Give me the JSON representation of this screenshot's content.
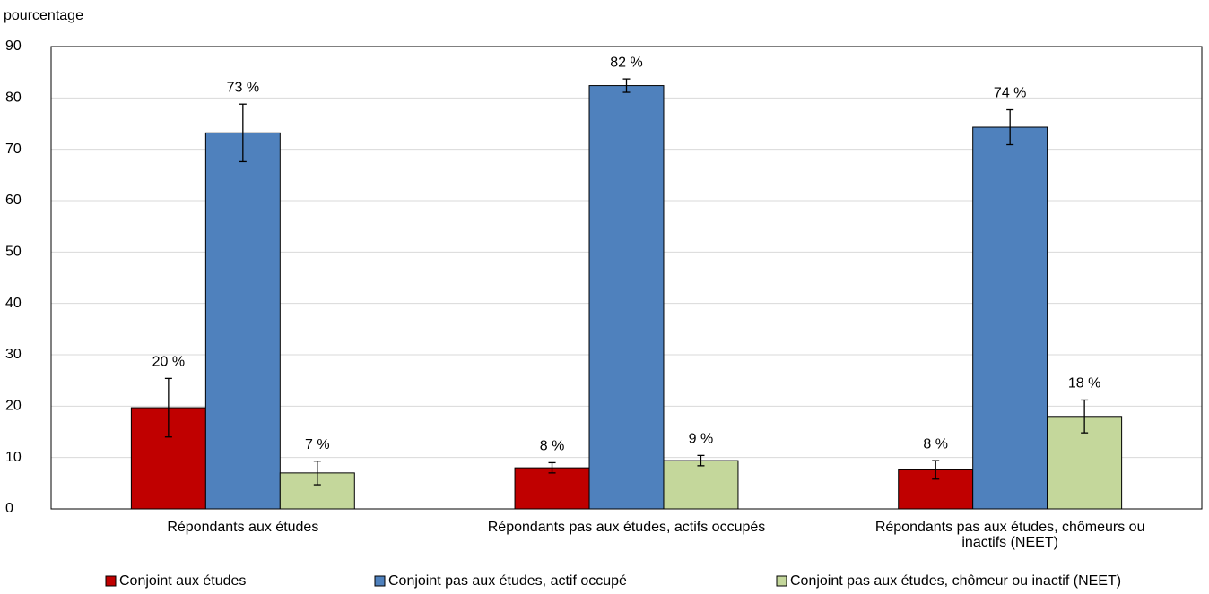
{
  "chart_data": {
    "type": "bar",
    "y_label": "pourcentage",
    "categories": [
      "Répondants aux études",
      "Répondants pas aux études, actifs occupés",
      "Répondants pas aux études, chômeurs ou inactifs (NEET)"
    ],
    "series": [
      {
        "name": "Conjoint aux études",
        "color": "#c00000",
        "values": [
          19.7,
          8.0,
          7.6
        ],
        "errors": [
          5.7,
          1.0,
          1.8
        ],
        "value_labels": [
          "20 %",
          "8 %",
          "8 %"
        ]
      },
      {
        "name": "Conjoint pas aux études, actif occupé",
        "color": "#4f81bd",
        "values": [
          73.2,
          82.4,
          74.3
        ],
        "errors": [
          5.6,
          1.3,
          3.4
        ],
        "value_labels": [
          "73 %",
          "82 %",
          "74 %"
        ]
      },
      {
        "name": "Conjoint pas aux études, chômeur ou inactif (NEET)",
        "color": "#c4d79b",
        "values": [
          7.0,
          9.4,
          18.0
        ],
        "errors": [
          2.3,
          1.0,
          3.2
        ],
        "value_labels": [
          "7 %",
          "9 %",
          "18 %"
        ]
      }
    ],
    "ylim": [
      0,
      90
    ],
    "yticks": [
      0,
      10,
      20,
      30,
      40,
      50,
      60,
      70,
      80,
      90
    ],
    "grid": true
  }
}
